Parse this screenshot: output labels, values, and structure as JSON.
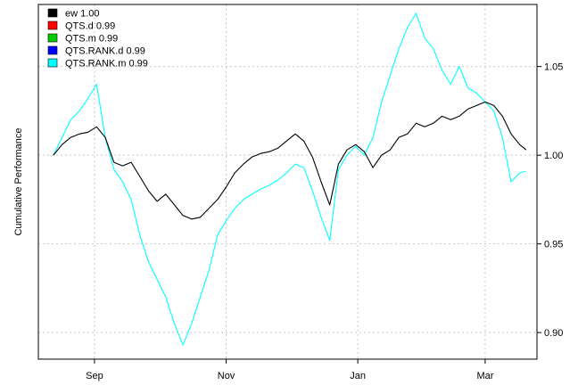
{
  "chart_data": {
    "type": "line",
    "title": "",
    "xlabel": "",
    "ylabel": "Cumulative Performance",
    "ylim": [
      0.885,
      1.085
    ],
    "yticks": [
      0.9,
      0.95,
      1.0,
      1.05
    ],
    "ytick_labels": [
      "0.90",
      "0.95",
      "1.00",
      "1.05"
    ],
    "xlim": [
      "2012-08-06",
      "2013-03-25"
    ],
    "xticks": [
      "2012-09-01",
      "2012-11-01",
      "2013-01-01",
      "2013-03-01"
    ],
    "xtick_labels": [
      "Sep",
      "Nov",
      "Jan",
      "Mar"
    ],
    "grid": true,
    "legend_position": "top-left",
    "legend": [
      {
        "label": "ew 1.00",
        "color": "#000000"
      },
      {
        "label": "QTS.d 0.99",
        "color": "#ff0000"
      },
      {
        "label": "QTS.m 0.99",
        "color": "#00cd00"
      },
      {
        "label": "QTS.RANK.d 0.99",
        "color": "#0000ff"
      },
      {
        "label": "QTS.RANK.m 0.99",
        "color": "#00ffff"
      }
    ],
    "series": [
      {
        "name": "ew 1.00",
        "color": "#000000",
        "x": [
          "2012-08-13",
          "2012-08-17",
          "2012-08-21",
          "2012-08-25",
          "2012-08-29",
          "2012-09-02",
          "2012-09-06",
          "2012-09-10",
          "2012-09-14",
          "2012-09-18",
          "2012-09-22",
          "2012-09-26",
          "2012-09-30",
          "2012-10-04",
          "2012-10-08",
          "2012-10-12",
          "2012-10-16",
          "2012-10-20",
          "2012-10-24",
          "2012-10-28",
          "2012-11-01",
          "2012-11-05",
          "2012-11-09",
          "2012-11-13",
          "2012-11-17",
          "2012-11-21",
          "2012-11-25",
          "2012-11-29",
          "2012-12-03",
          "2012-12-07",
          "2012-12-11",
          "2012-12-15",
          "2012-12-19",
          "2012-12-23",
          "2012-12-27",
          "2012-12-31",
          "2013-01-04",
          "2013-01-08",
          "2013-01-12",
          "2013-01-16",
          "2013-01-20",
          "2013-01-24",
          "2013-01-28",
          "2013-02-01",
          "2013-02-05",
          "2013-02-09",
          "2013-02-13",
          "2013-02-17",
          "2013-02-21",
          "2013-02-25",
          "2013-03-01",
          "2013-03-05",
          "2013-03-09",
          "2013-03-13",
          "2013-03-17",
          "2013-03-20"
        ],
        "values": [
          1.0,
          1.006,
          1.01,
          1.012,
          1.013,
          1.016,
          1.01,
          0.996,
          0.994,
          0.996,
          0.988,
          0.98,
          0.974,
          0.978,
          0.972,
          0.966,
          0.964,
          0.965,
          0.97,
          0.975,
          0.982,
          0.99,
          0.995,
          0.999,
          1.001,
          1.002,
          1.004,
          1.008,
          1.012,
          1.008,
          0.999,
          0.985,
          0.972,
          0.995,
          1.003,
          1.006,
          1.002,
          0.993,
          1.0,
          1.003,
          1.01,
          1.012,
          1.018,
          1.016,
          1.018,
          1.022,
          1.02,
          1.022,
          1.026,
          1.028,
          1.03,
          1.028,
          1.022,
          1.012,
          1.006,
          1.003
        ]
      },
      {
        "name": "QTS.RANK.m 0.99",
        "color": "#00ffff",
        "x": [
          "2012-08-13",
          "2012-08-17",
          "2012-08-21",
          "2012-08-25",
          "2012-08-29",
          "2012-09-02",
          "2012-09-06",
          "2012-09-10",
          "2012-09-14",
          "2012-09-18",
          "2012-09-22",
          "2012-09-26",
          "2012-09-30",
          "2012-10-04",
          "2012-10-08",
          "2012-10-12",
          "2012-10-16",
          "2012-10-20",
          "2012-10-24",
          "2012-10-28",
          "2012-11-01",
          "2012-11-05",
          "2012-11-09",
          "2012-11-13",
          "2012-11-17",
          "2012-11-21",
          "2012-11-25",
          "2012-11-29",
          "2012-12-03",
          "2012-12-07",
          "2012-12-11",
          "2012-12-15",
          "2012-12-19",
          "2012-12-23",
          "2012-12-27",
          "2012-12-31",
          "2013-01-04",
          "2013-01-08",
          "2013-01-12",
          "2013-01-16",
          "2013-01-20",
          "2013-01-24",
          "2013-01-28",
          "2013-02-01",
          "2013-02-05",
          "2013-02-09",
          "2013-02-13",
          "2013-02-17",
          "2013-02-21",
          "2013-02-25",
          "2013-03-01",
          "2013-03-05",
          "2013-03-09",
          "2013-03-13",
          "2013-03-17",
          "2013-03-20"
        ],
        "values": [
          1.0,
          1.01,
          1.02,
          1.025,
          1.032,
          1.04,
          1.01,
          0.992,
          0.985,
          0.975,
          0.955,
          0.94,
          0.93,
          0.92,
          0.905,
          0.893,
          0.905,
          0.92,
          0.935,
          0.955,
          0.963,
          0.97,
          0.975,
          0.978,
          0.981,
          0.983,
          0.986,
          0.99,
          0.995,
          0.993,
          0.98,
          0.965,
          0.952,
          0.992,
          1.0,
          1.005,
          1.0,
          1.01,
          1.03,
          1.045,
          1.06,
          1.072,
          1.08,
          1.066,
          1.06,
          1.048,
          1.04,
          1.05,
          1.038,
          1.035,
          1.03,
          1.025,
          1.01,
          0.985,
          0.99,
          0.991
        ]
      }
    ]
  }
}
